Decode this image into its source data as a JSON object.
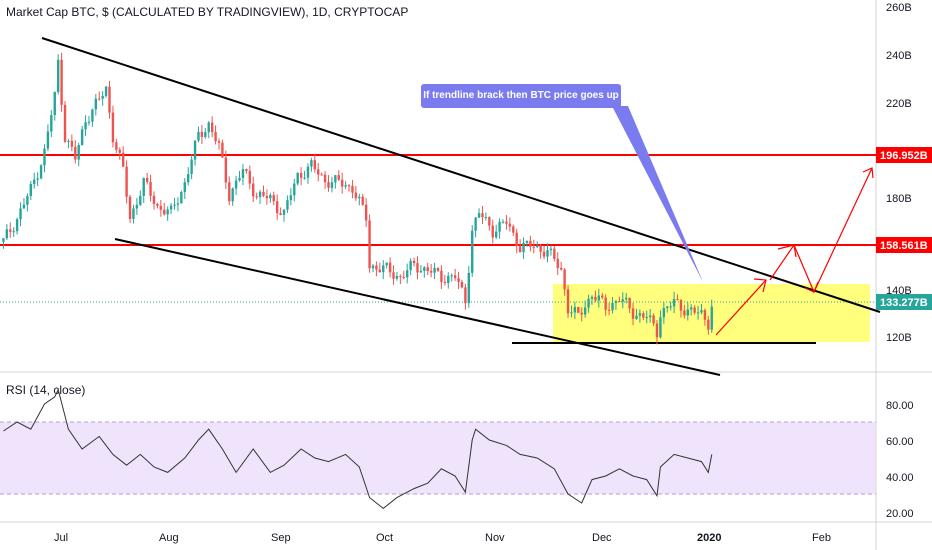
{
  "chart_title": "Market Cap BTC, $ (CALCULATED BY TRADINGVIEW), 1D, CRYPTOCAP",
  "rsi_title": "RSI (14, close)",
  "annotation": "If trendline brack then BTC price goes up",
  "colors": {
    "up": "#26a69a",
    "down": "#ef5350",
    "resistance": "#ff0000",
    "trendline": "#000000",
    "range_box": "#ffff66",
    "rsi_line": "#333333",
    "rsi_band": "#e9dbfa",
    "callout": "#7b7bf0",
    "last_label": "#26a69a",
    "projection": "#ff0000"
  },
  "price_axis": {
    "ticks": [
      "260B",
      "240B",
      "220B",
      "180B",
      "140B",
      "120B"
    ],
    "labels": {
      "r1": "196.952B",
      "r2": "158.561B",
      "last": "133.277B"
    }
  },
  "rsi_axis": {
    "ticks": [
      "80.00",
      "60.00",
      "40.00",
      "20.00"
    ]
  },
  "time_axis": {
    "ticks": [
      "Jul",
      "Aug",
      "Sep",
      "Oct",
      "Nov",
      "Dec",
      "2020",
      "Feb"
    ]
  },
  "chart_data": [
    {
      "type": "candlestick",
      "title": "Market Cap BTC, $ (CALCULATED BY TRADINGVIEW), 1D, CRYPTOCAP",
      "x_range": [
        "2019-06-09",
        "2020-02-20"
      ],
      "ylim_billion": [
        108,
        263
      ],
      "unit": "billion USD",
      "last_value": 133.277,
      "horizontal_levels": [
        196.952,
        158.561
      ],
      "close_series_billion": [
        [
          "2019-06-10",
          160
        ],
        [
          "2019-06-14",
          170
        ],
        [
          "2019-06-18",
          182
        ],
        [
          "2019-06-22",
          198
        ],
        [
          "2019-06-25",
          222
        ],
        [
          "2019-06-26",
          236
        ],
        [
          "2019-06-28",
          205
        ],
        [
          "2019-07-01",
          195
        ],
        [
          "2019-07-04",
          212
        ],
        [
          "2019-07-08",
          220
        ],
        [
          "2019-07-10",
          225
        ],
        [
          "2019-07-12",
          205
        ],
        [
          "2019-07-15",
          190
        ],
        [
          "2019-07-17",
          170
        ],
        [
          "2019-07-21",
          185
        ],
        [
          "2019-07-25",
          175
        ],
        [
          "2019-07-29",
          172
        ],
        [
          "2019-08-02",
          185
        ],
        [
          "2019-08-06",
          205
        ],
        [
          "2019-08-09",
          210
        ],
        [
          "2019-08-12",
          200
        ],
        [
          "2019-08-15",
          180
        ],
        [
          "2019-08-19",
          190
        ],
        [
          "2019-08-23",
          180
        ],
        [
          "2019-08-27",
          178
        ],
        [
          "2019-08-31",
          172
        ],
        [
          "2019-09-04",
          188
        ],
        [
          "2019-09-08",
          192
        ],
        [
          "2019-09-12",
          186
        ],
        [
          "2019-09-16",
          185
        ],
        [
          "2019-09-20",
          183
        ],
        [
          "2019-09-24",
          170
        ],
        [
          "2019-09-25",
          150
        ],
        [
          "2019-09-30",
          148
        ],
        [
          "2019-10-04",
          145
        ],
        [
          "2019-10-08",
          150
        ],
        [
          "2019-10-12",
          148
        ],
        [
          "2019-10-16",
          145
        ],
        [
          "2019-10-20",
          145
        ],
        [
          "2019-10-23",
          135
        ],
        [
          "2019-10-25",
          165
        ],
        [
          "2019-10-27",
          172
        ],
        [
          "2019-10-31",
          165
        ],
        [
          "2019-11-04",
          168
        ],
        [
          "2019-11-08",
          158
        ],
        [
          "2019-11-12",
          158
        ],
        [
          "2019-11-16",
          156
        ],
        [
          "2019-11-20",
          148
        ],
        [
          "2019-11-22",
          132
        ],
        [
          "2019-11-25",
          128
        ],
        [
          "2019-11-29",
          138
        ],
        [
          "2019-12-03",
          132
        ],
        [
          "2019-12-07",
          136
        ],
        [
          "2019-12-11",
          130
        ],
        [
          "2019-12-15",
          128
        ],
        [
          "2019-12-18",
          122
        ],
        [
          "2019-12-19",
          130
        ],
        [
          "2019-12-23",
          134
        ],
        [
          "2019-12-27",
          131
        ],
        [
          "2019-12-31",
          129
        ],
        [
          "2020-01-02",
          126
        ],
        [
          "2020-01-03",
          133.277
        ]
      ]
    },
    {
      "type": "line",
      "title": "RSI (14, close)",
      "x_range": [
        "2019-06-09",
        "2020-02-20"
      ],
      "ylim": [
        14,
        95
      ],
      "overbought": 70,
      "oversold": 30,
      "series": [
        {
          "values": [
            [
              "2019-06-10",
              65
            ],
            [
              "2019-06-14",
              70
            ],
            [
              "2019-06-18",
              66
            ],
            [
              "2019-06-22",
              80
            ],
            [
              "2019-06-25",
              84
            ],
            [
              "2019-06-26",
              88
            ],
            [
              "2019-06-29",
              66
            ],
            [
              "2019-07-03",
              55
            ],
            [
              "2019-07-08",
              62
            ],
            [
              "2019-07-12",
              52
            ],
            [
              "2019-07-16",
              46
            ],
            [
              "2019-07-20",
              52
            ],
            [
              "2019-07-24",
              45
            ],
            [
              "2019-07-28",
              42
            ],
            [
              "2019-08-02",
              50
            ],
            [
              "2019-08-06",
              60
            ],
            [
              "2019-08-09",
              66
            ],
            [
              "2019-08-13",
              55
            ],
            [
              "2019-08-17",
              42
            ],
            [
              "2019-08-22",
              55
            ],
            [
              "2019-08-27",
              42
            ],
            [
              "2019-08-31",
              46
            ],
            [
              "2019-09-05",
              55
            ],
            [
              "2019-09-09",
              50
            ],
            [
              "2019-09-13",
              48
            ],
            [
              "2019-09-18",
              52
            ],
            [
              "2019-09-22",
              45
            ],
            [
              "2019-09-25",
              28
            ],
            [
              "2019-09-29",
              22
            ],
            [
              "2019-10-03",
              28
            ],
            [
              "2019-10-08",
              33
            ],
            [
              "2019-10-12",
              36
            ],
            [
              "2019-10-16",
              44
            ],
            [
              "2019-10-20",
              40
            ],
            [
              "2019-10-23",
              31
            ],
            [
              "2019-10-25",
              60
            ],
            [
              "2019-10-26",
              66
            ],
            [
              "2019-10-30",
              60
            ],
            [
              "2019-11-04",
              57
            ],
            [
              "2019-11-08",
              52
            ],
            [
              "2019-11-13",
              50
            ],
            [
              "2019-11-18",
              44
            ],
            [
              "2019-11-22",
              30
            ],
            [
              "2019-11-26",
              25
            ],
            [
              "2019-11-29",
              38
            ],
            [
              "2019-12-03",
              40
            ],
            [
              "2019-12-07",
              44
            ],
            [
              "2019-12-11",
              40
            ],
            [
              "2019-12-15",
              38
            ],
            [
              "2019-12-18",
              29
            ],
            [
              "2019-12-19",
              45
            ],
            [
              "2019-12-23",
              52
            ],
            [
              "2019-12-27",
              50
            ],
            [
              "2019-12-31",
              48
            ],
            [
              "2020-01-02",
              42
            ],
            [
              "2020-01-03",
              52
            ]
          ]
        }
      ]
    }
  ]
}
